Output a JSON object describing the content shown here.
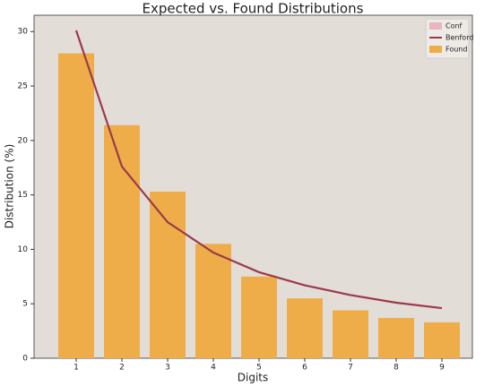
{
  "chart_data": {
    "type": "bar",
    "title": "Expected vs. Found Distributions",
    "x_label": "Digits",
    "y_label": "Distribution (%)",
    "categories": [
      "1",
      "2",
      "3",
      "4",
      "5",
      "6",
      "7",
      "8",
      "9"
    ],
    "series": [
      {
        "name": "Conf",
        "color": "#e6b8bd"
      },
      {
        "name": "Benford",
        "color": "#9b3a4a",
        "type": "line",
        "values": [
          30.1,
          17.6,
          12.5,
          9.7,
          7.9,
          6.7,
          5.8,
          5.1,
          4.6
        ]
      },
      {
        "name": "Found",
        "color": "#efad4a",
        "type": "bar",
        "values": [
          28.0,
          21.4,
          15.3,
          10.5,
          7.5,
          5.5,
          4.4,
          3.7,
          3.3
        ]
      }
    ],
    "ylim": [
      0,
      31.5
    ],
    "yticks": [
      0,
      5,
      10,
      15,
      20,
      25,
      30
    ],
    "legend": "upper right"
  }
}
